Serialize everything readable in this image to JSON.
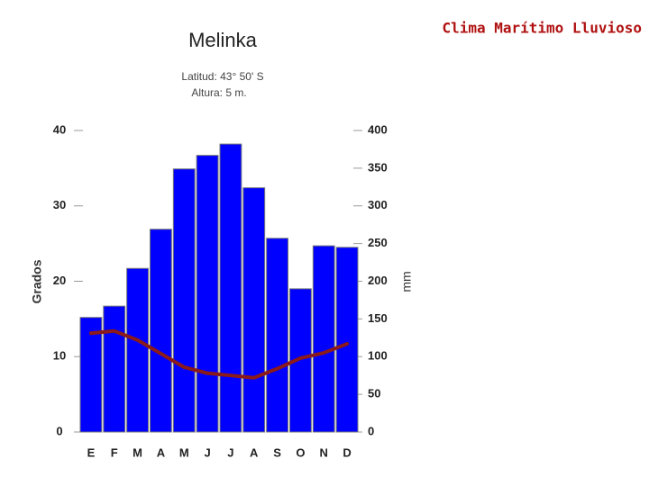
{
  "header": {
    "title": "Clima Marítimo Lluvioso"
  },
  "chart_data": {
    "type": "bar",
    "title": "Melinka",
    "subtitle": [
      "Latitud: 43° 50' S",
      "Altura: 5 m."
    ],
    "y_label": "Grados",
    "y2_label": "mm",
    "categories": [
      "E",
      "F",
      "M",
      "A",
      "M",
      "J",
      "J",
      "A",
      "S",
      "O",
      "N",
      "D"
    ],
    "series": [
      {
        "type": "bar",
        "axis": "y2",
        "color": "#0000ff",
        "values": [
          152,
          167,
          217,
          269,
          349,
          367,
          382,
          324,
          257,
          190,
          247,
          245
        ]
      },
      {
        "type": "line",
        "axis": "y",
        "color": "#8b1a1a",
        "values": [
          13.1,
          13.4,
          12.2,
          10.4,
          8.6,
          7.8,
          7.5,
          7.2,
          8.4,
          9.8,
          10.5,
          11.7
        ]
      }
    ],
    "ylim": [
      0,
      40
    ],
    "yticks": [
      0,
      10,
      20,
      30,
      40
    ],
    "y2lim": [
      0,
      400
    ],
    "y2ticks": [
      0,
      50,
      100,
      150,
      200,
      250,
      300,
      350,
      400
    ],
    "grid": false
  }
}
